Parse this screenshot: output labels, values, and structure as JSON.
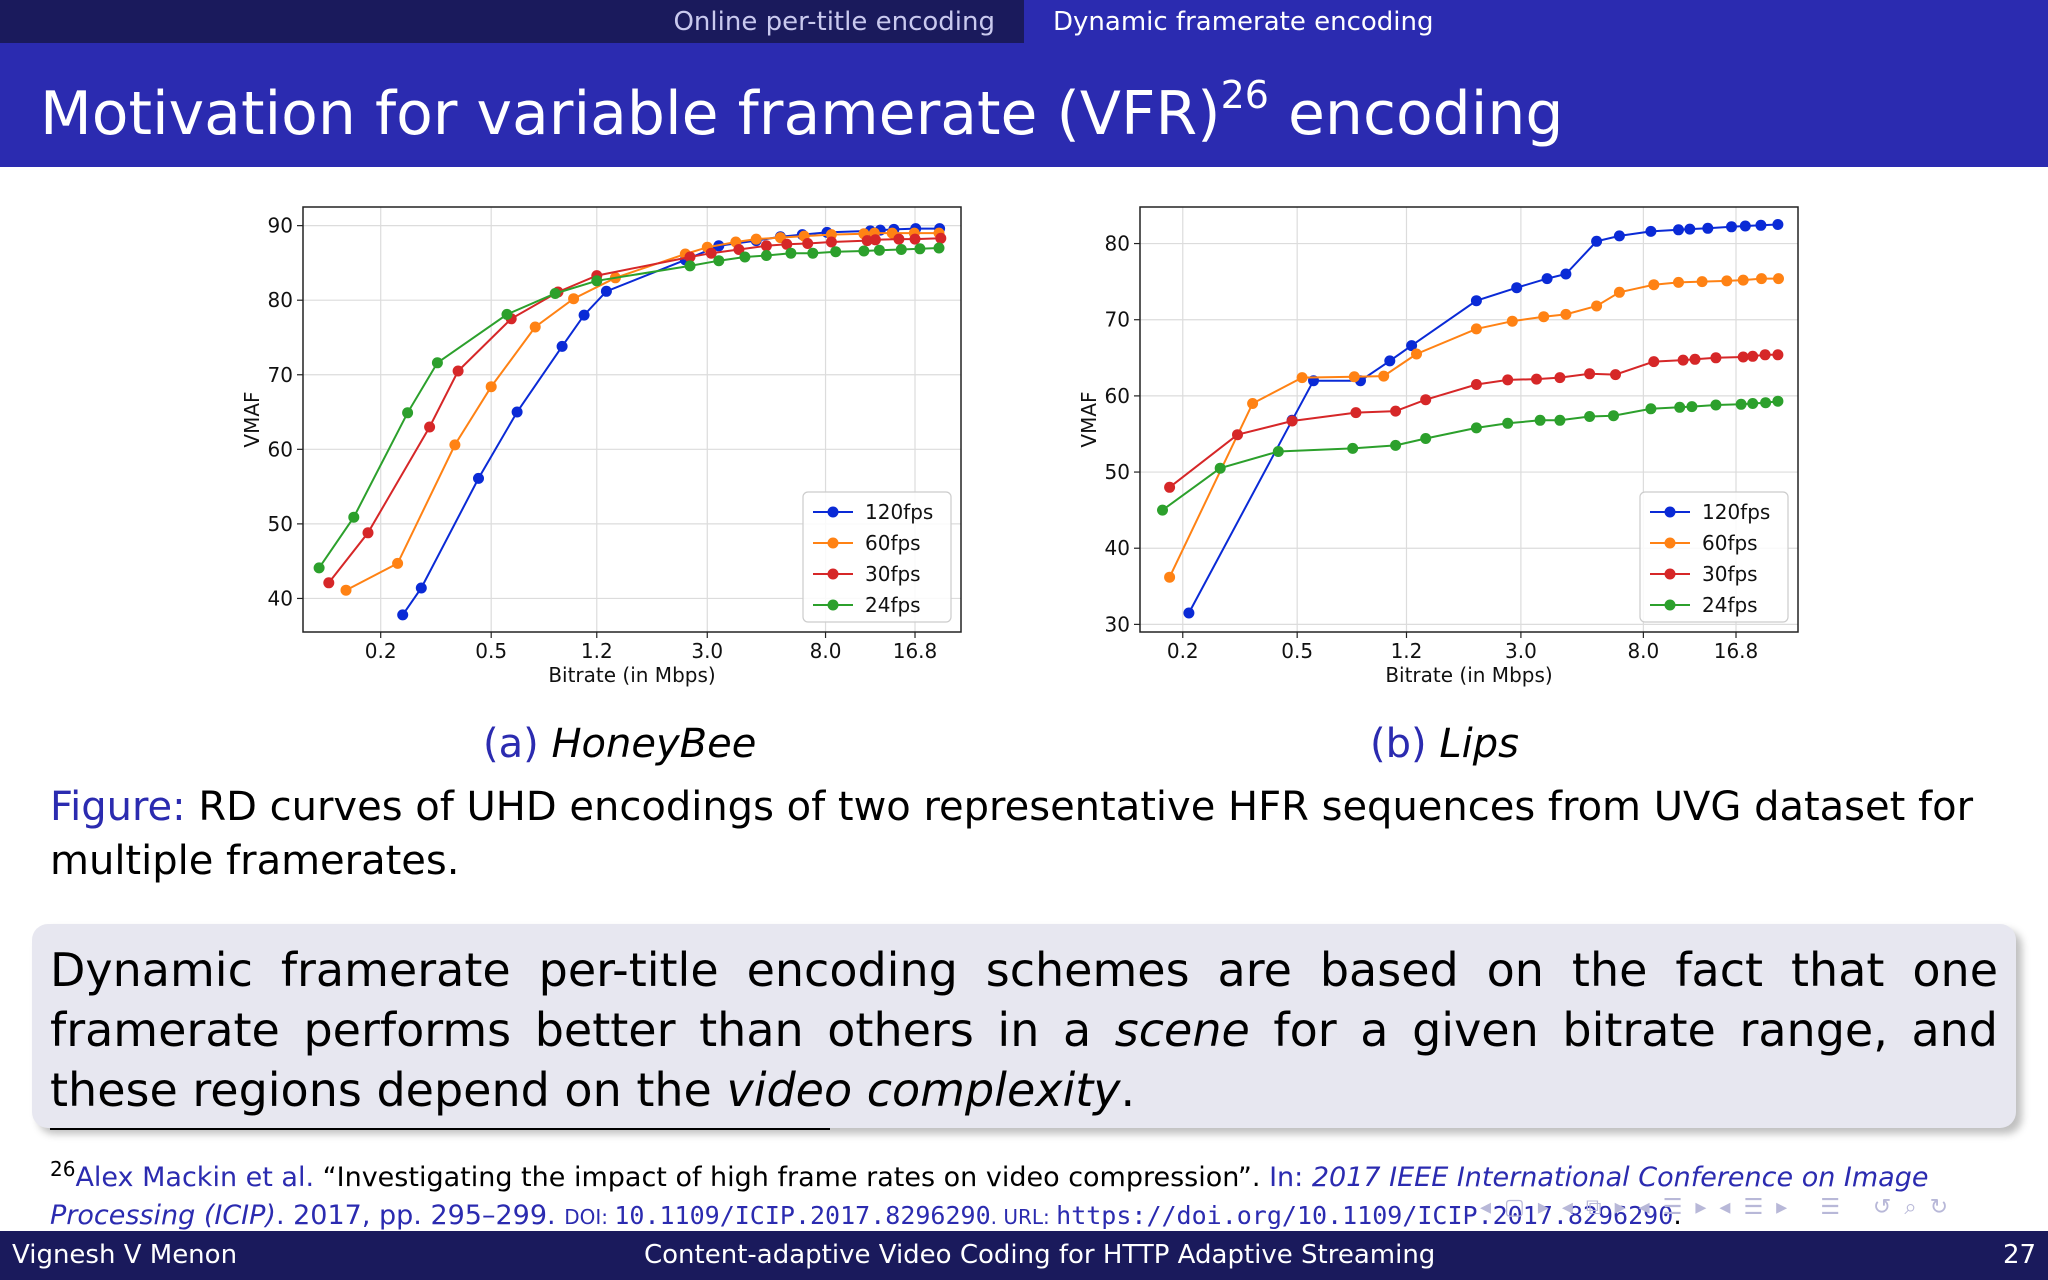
{
  "nav": {
    "tab1": "Online per-title encoding",
    "tab2": "Dynamic framerate encoding"
  },
  "slide": {
    "title_main": "Motivation for variable framerate (VFR)",
    "title_ref": "26",
    "title_tail": " encoding"
  },
  "subcaptions": {
    "a_label": "(a)",
    "a_name": "HoneyBee",
    "b_label": "(b)",
    "b_name": "Lips"
  },
  "figure_caption": {
    "label": "Figure:",
    "text": " RD curves of UHD encodings of two representative HFR sequences from UVG dataset for multiple framerates."
  },
  "highlight": {
    "t1": "Dynamic framerate per-title encoding schemes are based on the fact that one framerate performs better than others in a ",
    "em1": "scene",
    "t2": " for a given bitrate range, and these regions depend on the ",
    "em2": "video complexity",
    "t3": "."
  },
  "footnote": {
    "mark": "26",
    "authors": "Alex Mackin et al.",
    "title": " “Investigating the impact of high frame rates on video compression”. ",
    "in_label": "In: ",
    "venue": "2017 IEEE International Conference on Image Processing (ICIP)",
    "pages": ". 2017, pp. 295–299. ",
    "doi_label": "DOI: ",
    "doi": "10.1109/ICIP.2017.8296290",
    "url_label": ". URL: ",
    "url": "https://doi.org/10.1109/ICIP.2017.8296290",
    "end": "."
  },
  "footer": {
    "author": "Vignesh V Menon",
    "talk": "Content-adaptive Video Coding for HTTP Adaptive Streaming",
    "page": "27"
  },
  "colors": {
    "structure_dark": "#1a1a5c",
    "structure": "#2b2bb0",
    "s120": "#0a2ad6",
    "s60": "#ff8214",
    "s30": "#d62728",
    "s24": "#2ca02c"
  },
  "chart_data": [
    {
      "type": "line",
      "xscale": "log",
      "xlabel": "Bitrate (in Mbps)",
      "ylabel": "VMAF",
      "xticks": [
        0.2,
        0.5,
        1.2,
        3.0,
        8.0,
        16.8
      ],
      "xtick_labels": [
        "0.2",
        "0.5",
        "1.2",
        "3.0",
        "8.0",
        "16.8"
      ],
      "yticks": [
        40,
        50,
        60,
        70,
        80,
        90
      ],
      "ylim": [
        35.5,
        92.5
      ],
      "xlim": [
        0.105,
        24.6
      ],
      "legend": "bottom-right",
      "grid": true,
      "series": [
        {
          "name": "120fps",
          "points": [
            [
              0.24,
              37.8
            ],
            [
              0.28,
              41.4
            ],
            [
              0.45,
              56.1
            ],
            [
              0.62,
              65.0
            ],
            [
              0.9,
              73.8
            ],
            [
              1.08,
              78.0
            ],
            [
              1.3,
              81.2
            ],
            [
              2.5,
              85.4
            ],
            [
              3.3,
              87.3
            ],
            [
              4.5,
              88.0
            ],
            [
              5.5,
              88.5
            ],
            [
              6.6,
              88.8
            ],
            [
              8.1,
              89.1
            ],
            [
              11.6,
              89.3
            ],
            [
              12.6,
              89.4
            ],
            [
              14.1,
              89.5
            ],
            [
              16.9,
              89.6
            ],
            [
              20.6,
              89.6
            ]
          ]
        },
        {
          "name": "60fps",
          "points": [
            [
              0.15,
              41.1
            ],
            [
              0.23,
              44.7
            ],
            [
              0.37,
              60.6
            ],
            [
              0.5,
              68.4
            ],
            [
              0.72,
              76.4
            ],
            [
              0.99,
              80.2
            ],
            [
              1.4,
              83.0
            ],
            [
              2.5,
              86.2
            ],
            [
              3.0,
              87.1
            ],
            [
              3.8,
              87.8
            ],
            [
              4.5,
              88.2
            ],
            [
              5.5,
              88.4
            ],
            [
              6.7,
              88.6
            ],
            [
              8.4,
              88.8
            ],
            [
              11.0,
              88.9
            ],
            [
              12.0,
              89.0
            ],
            [
              13.9,
              89.0
            ],
            [
              16.7,
              89.0
            ],
            [
              20.5,
              89.0
            ]
          ]
        },
        {
          "name": "30fps",
          "points": [
            [
              0.13,
              42.1
            ],
            [
              0.18,
              48.8
            ],
            [
              0.3,
              63.0
            ],
            [
              0.38,
              70.5
            ],
            [
              0.59,
              77.5
            ],
            [
              0.87,
              81.1
            ],
            [
              1.2,
              83.3
            ],
            [
              2.6,
              85.8
            ],
            [
              3.1,
              86.3
            ],
            [
              3.9,
              86.8
            ],
            [
              4.9,
              87.3
            ],
            [
              5.8,
              87.5
            ],
            [
              6.9,
              87.6
            ],
            [
              8.4,
              87.8
            ],
            [
              11.3,
              88.0
            ],
            [
              12.1,
              88.1
            ],
            [
              14.7,
              88.2
            ],
            [
              16.8,
              88.2
            ],
            [
              20.8,
              88.3
            ]
          ]
        },
        {
          "name": "24fps",
          "points": [
            [
              0.12,
              44.1
            ],
            [
              0.16,
              50.9
            ],
            [
              0.25,
              64.9
            ],
            [
              0.32,
              71.6
            ],
            [
              0.57,
              78.1
            ],
            [
              0.85,
              80.9
            ],
            [
              1.2,
              82.6
            ],
            [
              2.6,
              84.6
            ],
            [
              3.3,
              85.3
            ],
            [
              4.1,
              85.8
            ],
            [
              4.9,
              86.0
            ],
            [
              6.0,
              86.3
            ],
            [
              7.2,
              86.3
            ],
            [
              8.7,
              86.5
            ],
            [
              11.0,
              86.6
            ],
            [
              12.5,
              86.7
            ],
            [
              15.0,
              86.8
            ],
            [
              17.5,
              86.9
            ],
            [
              20.5,
              87.0
            ]
          ]
        }
      ]
    },
    {
      "type": "line",
      "xscale": "log",
      "xlabel": "Bitrate (in Mbps)",
      "ylabel": "VMAF",
      "xticks": [
        0.2,
        0.5,
        1.2,
        3.0,
        8.0,
        16.8
      ],
      "xtick_labels": [
        "0.2",
        "0.5",
        "1.2",
        "3.0",
        "8.0",
        "16.8"
      ],
      "yticks": [
        30,
        40,
        50,
        60,
        70,
        80
      ],
      "ylim": [
        29.0,
        84.8
      ],
      "xlim": [
        0.142,
        27.6
      ],
      "legend": "bottom-right",
      "grid": true,
      "series": [
        {
          "name": "120fps",
          "points": [
            [
              0.21,
              31.5
            ],
            [
              0.48,
              56.8
            ],
            [
              0.57,
              62.0
            ],
            [
              0.83,
              62.0
            ],
            [
              1.05,
              64.6
            ],
            [
              1.25,
              66.6
            ],
            [
              2.1,
              72.5
            ],
            [
              2.9,
              74.2
            ],
            [
              3.7,
              75.4
            ],
            [
              4.3,
              76.0
            ],
            [
              5.5,
              80.3
            ],
            [
              6.6,
              81.0
            ],
            [
              8.5,
              81.6
            ],
            [
              10.6,
              81.8
            ],
            [
              11.6,
              81.9
            ],
            [
              13.4,
              82.0
            ],
            [
              16.2,
              82.2
            ],
            [
              18.1,
              82.3
            ],
            [
              20.5,
              82.4
            ],
            [
              23.5,
              82.5
            ]
          ]
        },
        {
          "name": "60fps",
          "points": [
            [
              0.18,
              36.2
            ],
            [
              0.35,
              59.0
            ],
            [
              0.52,
              62.4
            ],
            [
              0.79,
              62.5
            ],
            [
              1.0,
              62.6
            ],
            [
              1.3,
              65.5
            ],
            [
              2.1,
              68.8
            ],
            [
              2.8,
              69.8
            ],
            [
              3.6,
              70.4
            ],
            [
              4.3,
              70.7
            ],
            [
              5.5,
              71.8
            ],
            [
              6.6,
              73.6
            ],
            [
              8.7,
              74.6
            ],
            [
              10.6,
              74.9
            ],
            [
              12.8,
              75.0
            ],
            [
              15.6,
              75.1
            ],
            [
              17.8,
              75.2
            ],
            [
              20.6,
              75.4
            ],
            [
              23.6,
              75.4
            ]
          ]
        },
        {
          "name": "30fps",
          "points": [
            [
              0.18,
              48.0
            ],
            [
              0.31,
              54.9
            ],
            [
              0.48,
              56.7
            ],
            [
              0.8,
              57.8
            ],
            [
              1.1,
              58.0
            ],
            [
              1.4,
              59.5
            ],
            [
              2.1,
              61.5
            ],
            [
              2.7,
              62.1
            ],
            [
              3.4,
              62.2
            ],
            [
              4.1,
              62.4
            ],
            [
              5.2,
              62.9
            ],
            [
              6.4,
              62.8
            ],
            [
              8.7,
              64.5
            ],
            [
              11.0,
              64.7
            ],
            [
              12.1,
              64.8
            ],
            [
              14.3,
              65.0
            ],
            [
              17.8,
              65.1
            ],
            [
              19.2,
              65.2
            ],
            [
              21.2,
              65.4
            ],
            [
              23.5,
              65.4
            ]
          ]
        },
        {
          "name": "24fps",
          "points": [
            [
              0.17,
              45.0
            ],
            [
              0.27,
              50.5
            ],
            [
              0.43,
              52.7
            ],
            [
              0.78,
              53.1
            ],
            [
              1.1,
              53.5
            ],
            [
              1.4,
              54.4
            ],
            [
              2.1,
              55.8
            ],
            [
              2.7,
              56.4
            ],
            [
              3.5,
              56.8
            ],
            [
              4.1,
              56.8
            ],
            [
              5.2,
              57.3
            ],
            [
              6.3,
              57.4
            ],
            [
              8.5,
              58.3
            ],
            [
              10.7,
              58.5
            ],
            [
              11.8,
              58.6
            ],
            [
              14.3,
              58.8
            ],
            [
              17.5,
              58.9
            ],
            [
              19.2,
              59.0
            ],
            [
              21.3,
              59.1
            ],
            [
              23.5,
              59.3
            ]
          ]
        }
      ]
    }
  ]
}
